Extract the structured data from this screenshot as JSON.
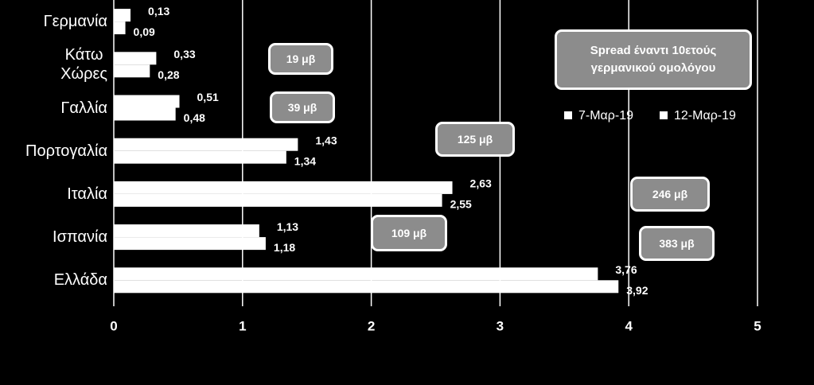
{
  "chart_data": {
    "type": "barh",
    "categories": [
      "Γερμανία",
      "Κάτω\nΧώρες",
      "Γαλλία",
      "Πορτογαλία",
      "Ιταλία",
      "Ισπανία",
      "Ελλάδα"
    ],
    "series": [
      {
        "name": "7-Μαρ-19",
        "color": "#ffffff",
        "values": [
          0.13,
          0.33,
          0.51,
          1.43,
          2.63,
          1.13,
          3.76
        ],
        "value_labels": [
          "0,13",
          "0,33",
          "0,51",
          "1,43",
          "2,63",
          "1,13",
          "3,76"
        ]
      },
      {
        "name": "12-Μαρ-19",
        "color": "#ffffff",
        "values": [
          0.09,
          0.28,
          0.48,
          1.34,
          2.55,
          1.18,
          3.92
        ],
        "value_labels": [
          "0,09",
          "0,28",
          "0,48",
          "1,34",
          "2,55",
          "1,18",
          "3,92"
        ]
      }
    ],
    "xlim": [
      0,
      5
    ],
    "xticks": [
      0,
      1,
      2,
      3,
      4,
      5
    ],
    "grid": true,
    "legend_title": "Spread έναντι 10ετούς γερμανικού ομολόγου",
    "annotations": [
      "19 μβ",
      "39 μβ",
      "125 μβ",
      "246 μβ",
      "109 μβ",
      "383 μβ"
    ]
  }
}
